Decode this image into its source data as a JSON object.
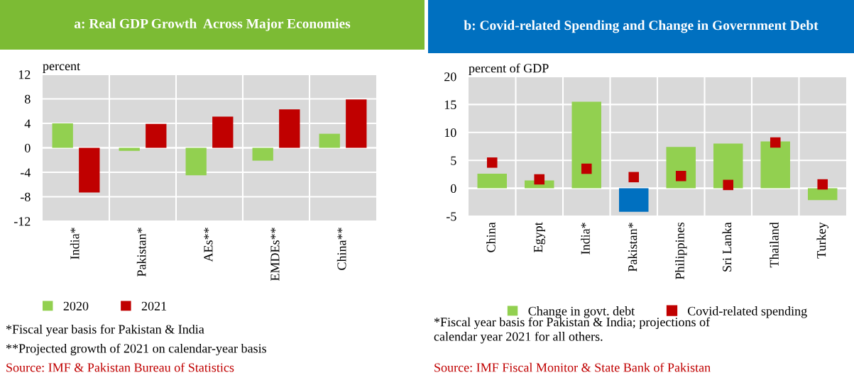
{
  "chart_data": [
    {
      "type": "bar",
      "title": "a: Real GDP Growth  Across Major Economies",
      "ylabel": "percent",
      "categories": [
        "India*",
        "Pakistan*",
        "AEs**",
        "EMDEs**",
        "China**"
      ],
      "series": [
        {
          "name": "2020",
          "color": "#92d050",
          "values": [
            4.0,
            -0.5,
            -4.5,
            -2.1,
            2.3
          ]
        },
        {
          "name": "2021",
          "color": "#c00000",
          "values": [
            -7.3,
            3.9,
            5.1,
            6.3,
            7.9
          ]
        }
      ],
      "ylim": [
        -12,
        12
      ],
      "yticks": [
        -12,
        -8,
        -4,
        0,
        4,
        8,
        12
      ],
      "grid": true,
      "legend": "bottom left",
      "annotations": [
        "*Fiscal year basis for Pakistan & India",
        "**Projected growth of 2021 on calendar-year basis",
        "Source: IMF & Pakistan Bureau of Statistics"
      ]
    },
    {
      "type": "bar",
      "title": "b: Covid-related Spending and Change in Government Debt",
      "ylabel": "percent of GDP",
      "categories": [
        "China",
        "Egypt",
        "India*",
        "Pakistan*",
        "Philippines",
        "Sri Lanka",
        "Thailand",
        "Turkey"
      ],
      "series": [
        {
          "name": "Change in govt. debt",
          "color": "#92d050",
          "colors": [
            "#92d050",
            "#92d050",
            "#92d050",
            "#0070c0",
            "#92d050",
            "#92d050",
            "#92d050",
            "#92d050"
          ],
          "values": [
            2.6,
            1.4,
            15.5,
            -4.2,
            7.4,
            8.0,
            8.4,
            -2.1
          ]
        },
        {
          "name": "Covid-related spending",
          "type": "scatter",
          "marker": "square",
          "color": "#c00000",
          "x": [
            "China",
            "Egypt",
            "India*",
            "Pakistan*",
            "Philippines",
            "Sri Lanka",
            "Thailand",
            "Turkey"
          ],
          "values": [
            4.6,
            1.6,
            3.5,
            2.0,
            2.2,
            0.6,
            8.2,
            0.7
          ]
        }
      ],
      "ylim": [
        -5,
        20
      ],
      "yticks": [
        -5,
        0,
        5,
        10,
        15,
        20
      ],
      "grid": true,
      "legend": "bottom",
      "annotations": [
        "*Fiscal year basis for Pakistan & India; projections of\ncalendar year 2021 for all others.",
        "Source: IMF Fiscal Monitor & State Bank of Pakistan"
      ]
    }
  ]
}
